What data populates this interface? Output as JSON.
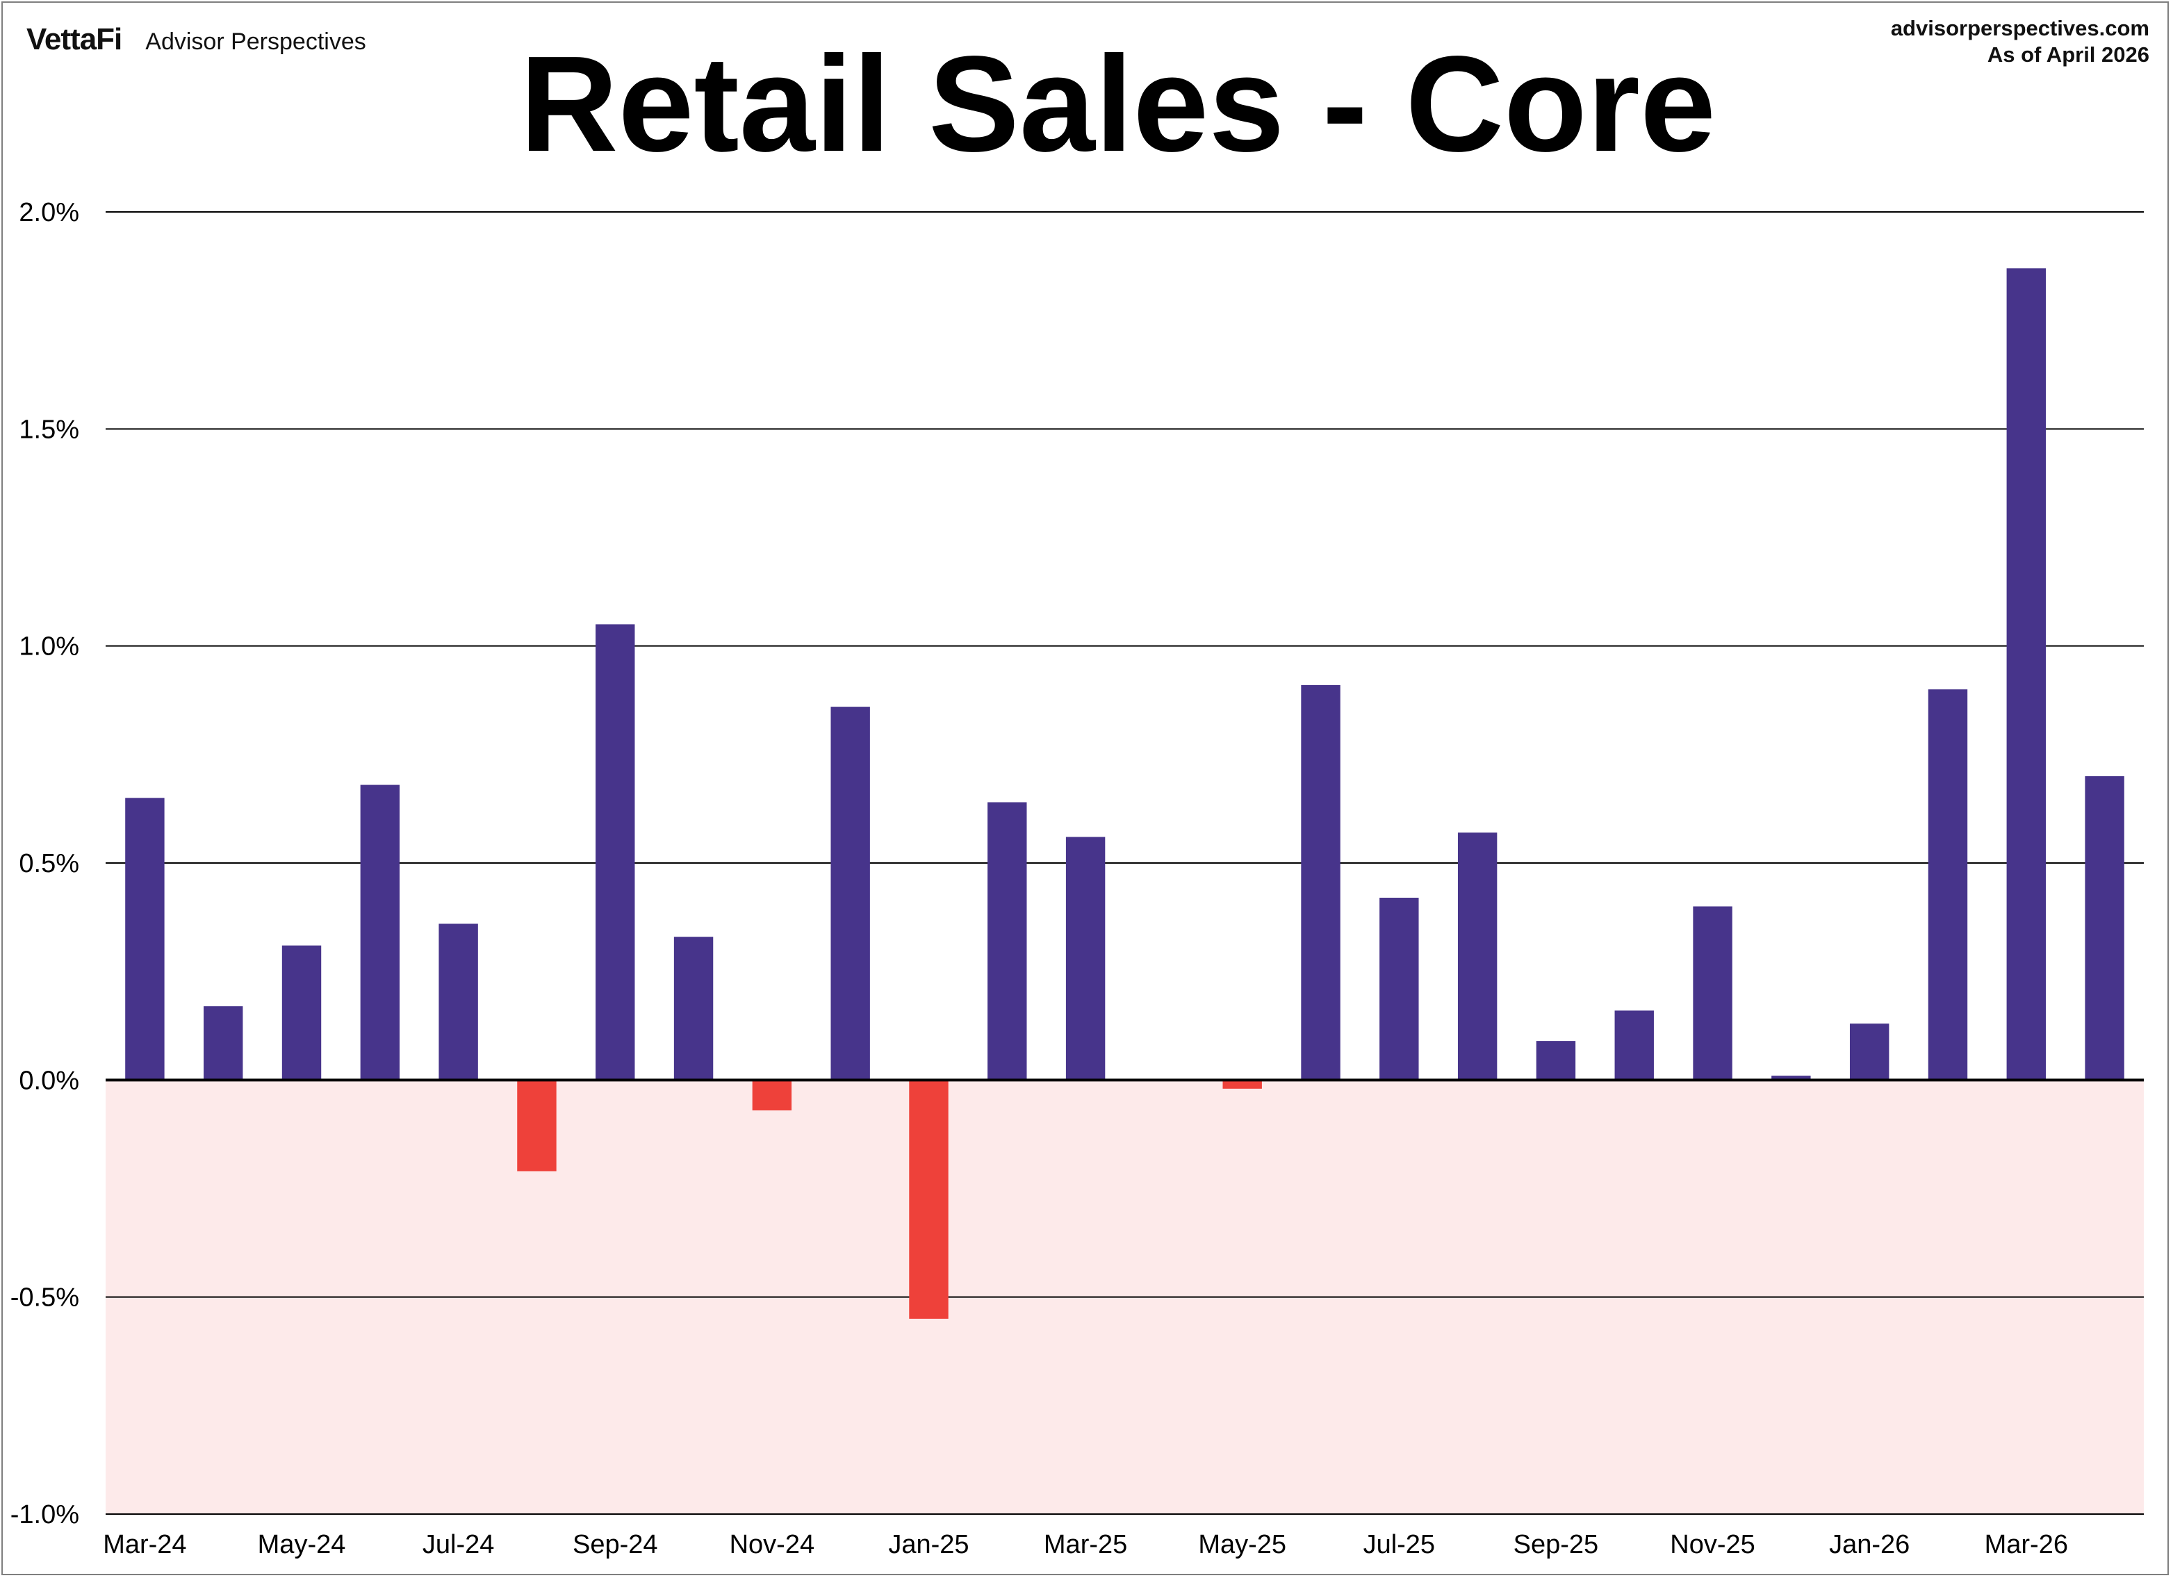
{
  "header": {
    "brand_logo": "VettaFi",
    "brand_name": "Advisor Perspectives",
    "source_url": "advisorperspectives.com",
    "as_of": "As of April 2026"
  },
  "colors": {
    "positive_bar": "#47348b",
    "negative_bar": "#ee413a",
    "negative_region": "#fdeaea",
    "gridline": "#000000"
  },
  "chart_data": {
    "type": "bar",
    "title": "Retail Sales - Core",
    "xlabel": "",
    "ylabel": "",
    "ylim": [
      -1.0,
      2.0
    ],
    "y_ticks": [
      2.0,
      1.5,
      1.0,
      0.5,
      0.0,
      -0.5,
      -1.0
    ],
    "y_tick_labels": [
      "2.0%",
      "1.5%",
      "1.0%",
      "0.5%",
      "0.0%",
      "-0.5%",
      "-1.0%"
    ],
    "grid": true,
    "categories": [
      "Mar-24",
      "Apr-24",
      "May-24",
      "Jun-24",
      "Jul-24",
      "Aug-24",
      "Sep-24",
      "Oct-24",
      "Nov-24",
      "Dec-24",
      "Jan-25",
      "Feb-25",
      "Mar-25",
      "Apr-25",
      "May-25",
      "Jun-25",
      "Jul-25",
      "Aug-25",
      "Sep-25",
      "Oct-25",
      "Nov-25",
      "Dec-25",
      "Jan-26",
      "Feb-26",
      "Mar-26",
      "Apr-26"
    ],
    "x_tick_labels": [
      "Mar-24",
      "May-24",
      "Jul-24",
      "Sep-24",
      "Nov-24",
      "Jan-25",
      "Mar-25",
      "May-25",
      "Jul-25",
      "Sep-25",
      "Nov-25",
      "Jan-26",
      "Mar-26"
    ],
    "values": [
      0.65,
      0.17,
      0.31,
      0.68,
      0.36,
      -0.21,
      1.05,
      0.33,
      -0.07,
      0.86,
      -0.55,
      0.64,
      0.56,
      0.0,
      -0.02,
      0.91,
      0.42,
      0.57,
      0.09,
      0.16,
      0.4,
      0.01,
      0.13,
      0.9,
      1.87,
      0.7
    ]
  }
}
